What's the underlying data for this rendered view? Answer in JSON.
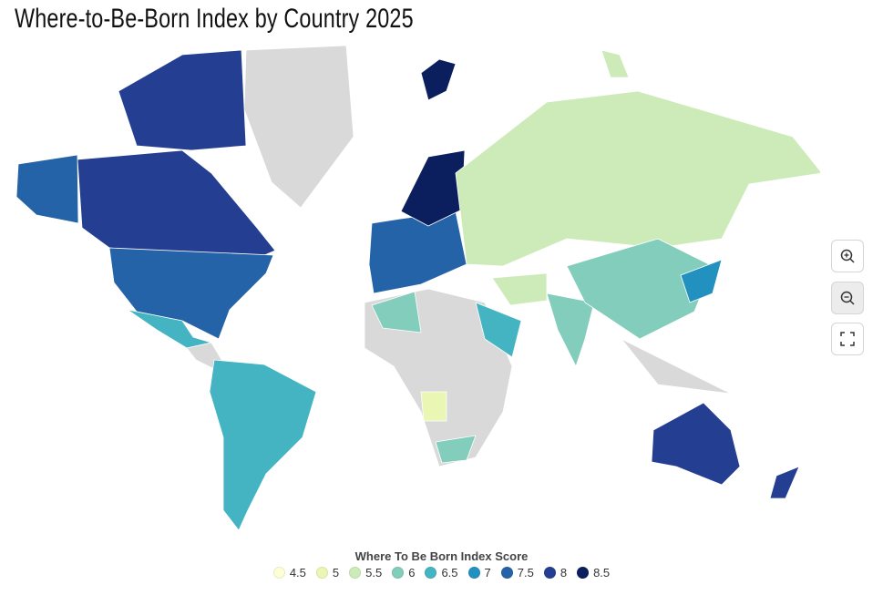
{
  "title": "Where-to-Be-Born Index by Country 2025",
  "legend": {
    "title": "Where To Be Born Index Score",
    "items": [
      {
        "value": 4.5,
        "color": "#fdfed6"
      },
      {
        "value": 5,
        "color": "#e9f6b4"
      },
      {
        "value": 5.5,
        "color": "#cdebb9"
      },
      {
        "value": 6,
        "color": "#82cdbb"
      },
      {
        "value": 6.5,
        "color": "#45b4c2"
      },
      {
        "value": 7,
        "color": "#2391c0"
      },
      {
        "value": 7.5,
        "color": "#2563a8"
      },
      {
        "value": 8,
        "color": "#243e92"
      },
      {
        "value": 8.5,
        "color": "#0b1f5e"
      }
    ]
  }
}
